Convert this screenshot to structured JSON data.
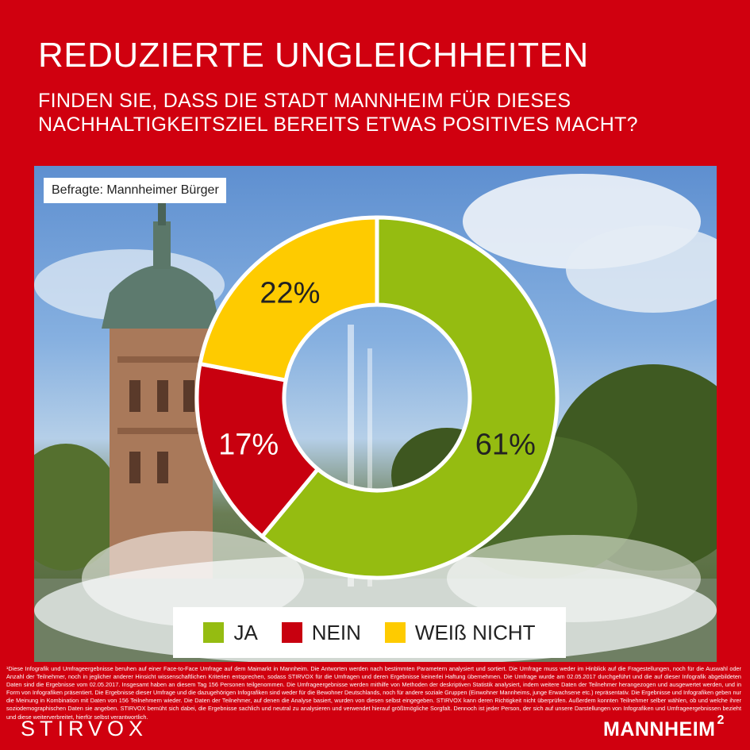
{
  "header": {
    "title": "REDUZIERTE UNGLEICHHEITEN",
    "subtitle": "FINDEN SIE, DASS DIE STADT MANNHEIM FÜR DIESES NACHHALTIGKEITSZIEL BEREITS ETWAS POSITIVES MACHT?"
  },
  "respondents": "Befragte: Mannheimer Bürger",
  "chart_data": {
    "type": "pie",
    "style": "donut",
    "categories": [
      "JA",
      "NEIN",
      "WEIß NICHT"
    ],
    "values": [
      61,
      17,
      22
    ],
    "value_labels": [
      "61%",
      "17%",
      "22%"
    ],
    "colors": [
      "#95bc11",
      "#c8000f",
      "#fecb00"
    ],
    "legend_position": "bottom",
    "title": "",
    "start_angle_deg": 0,
    "direction": "clockwise"
  },
  "legend": [
    {
      "label": "JA",
      "color": "#95bc11"
    },
    {
      "label": "NEIN",
      "color": "#c8000f"
    },
    {
      "label": "WEIß NICHT",
      "color": "#fecb00"
    }
  ],
  "footnote": {
    "text": "¹Diese Infografik und Umfrageergebnisse beruhen auf einer Face-to-Face Umfrage auf dem Maimarkt in Mannheim. Die Antworten werden nach bestimmten Parametern analysiert und sortiert. Die Umfrage muss weder im Hinblick auf die Fragestellungen, noch für die Auswahl oder Anzahl der Teilnehmer, noch in jeglicher anderer Hinsicht wissenschaftlichen Kriterien entsprechen, sodass STIRVOX für die Umfragen und deren Ergebnisse keinerlei Haftung übernehmen. Die Umfrage wurde am 02.05.2017 durchgeführt und die auf dieser Infografik abgebildeten Daten sind die Ergebnisse vom 02.05.2017. Insgesamt haben an diesem Tag 156 Personen teilgenommen. Die Umfrageergebnisse werden mithilfe von Methoden der deskriptiven Statistik analysiert, indem weitere Daten der Teilnehmer herangezogen und ausgewertet werden, und in Form von Infografiken präsentiert. Die Ergebnisse dieser Umfrage und die dazugehörigen Infografiken sind weder für die Bewohner Deutschlands, noch für andere soziale Gruppen (Einwohner Mannheims, junge Erwachsene etc.) repräsentativ. Die Ergebnisse und Infografiken geben nur die Meinung in Kombination mit Daten von 156 Teilnehmern wieder. Die Daten der Teilnehmer, auf denen die Analyse basiert, wurden von diesen selbst eingegeben. STIRVOX kann deren Richtigkeit nicht überprüfen. Außerdem konnten Teilnehmer selber wählen, ob und welche ihrer soziodemographischen Daten sie angeben. STIRVOX bemüht sich dabei, die Ergebnisse sachlich und neutral zu analysieren und verwendet hierauf größtmögliche Sorgfalt. Dennoch ist jeder Person, der sich auf unsere Darstellungen von Infografiken und Umfrageergebnissen bezieht und diese weiterverbreitet, hierfür selbst verantwortlich."
  },
  "brand": {
    "left": "STIRVOX",
    "right": "MANNHEIM",
    "right_sup": "2"
  }
}
